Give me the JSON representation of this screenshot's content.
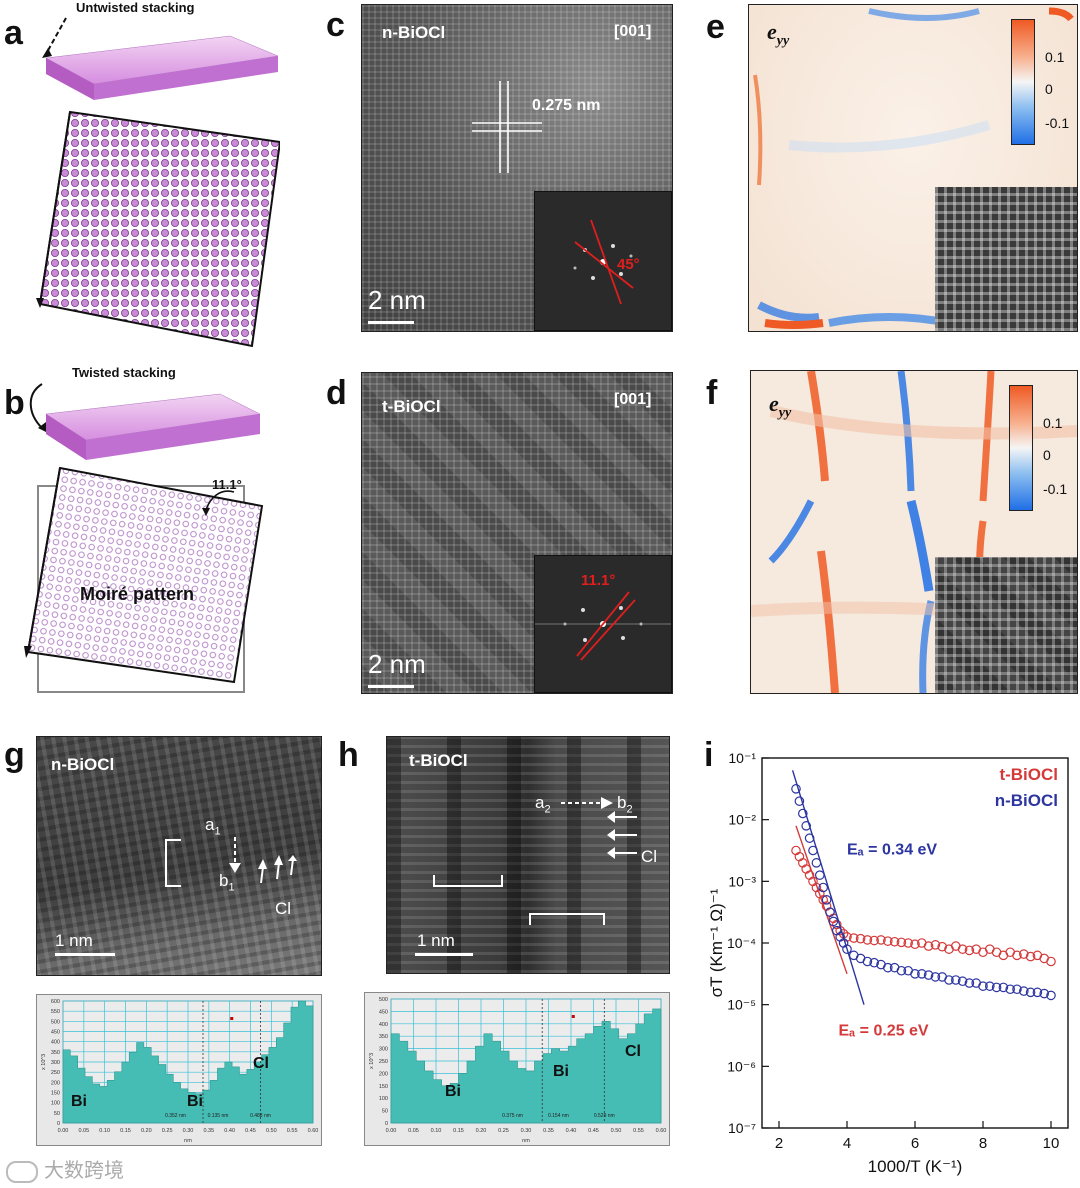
{
  "panels": {
    "a": {
      "letter": "a",
      "caption": "Untwisted stacking"
    },
    "b": {
      "letter": "b",
      "caption": "Twisted stacking",
      "angle": "11.1°",
      "moire": "Moiré pattern"
    },
    "c": {
      "letter": "c",
      "material": "n-BiOCl",
      "zone": "[001]",
      "spacing": "0.275 nm",
      "scale": "2 nm",
      "fft_angle": "45°"
    },
    "d": {
      "letter": "d",
      "material": "t-BiOCl",
      "zone": "[001]",
      "scale": "2 nm",
      "fft_angle": "11.1°"
    },
    "e": {
      "letter": "e",
      "strain_label": "e",
      "strain_sub": "yy",
      "ticks": [
        "0.1",
        "0",
        "-0.1"
      ]
    },
    "f": {
      "letter": "f",
      "strain_label": "e",
      "strain_sub": "yy",
      "ticks": [
        "0.1",
        "0",
        "-0.1"
      ]
    },
    "g": {
      "letter": "g",
      "material": "n-BiOCl",
      "a": "a",
      "a_sub": "1",
      "b": "b",
      "b_sub": "1",
      "cl": "Cl",
      "scale": "1 nm",
      "profile_labels": [
        "Bi",
        "Bi",
        "Cl"
      ],
      "yticks": [
        "600",
        "550",
        "500",
        "450",
        "400",
        "350",
        "300",
        "250",
        "200",
        "150",
        "100",
        "50",
        "0"
      ],
      "xticks": [
        "0.00",
        "0.05",
        "0.10",
        "0.15",
        "0.20",
        "0.25",
        "0.30",
        "0.35",
        "0.40",
        "0.45",
        "0.50",
        "0.55",
        "0.60"
      ],
      "ylabel": "x 10^3",
      "xlabel": "nm",
      "measures": [
        "0.352 nm",
        "0.135 nm",
        "0.488 nm"
      ]
    },
    "h": {
      "letter": "h",
      "material": "t-BiOCl",
      "a": "a",
      "a_sub": "2",
      "b": "b",
      "b_sub": "2",
      "cl": "Cl",
      "scale": "1 nm",
      "profile_labels": [
        "Bi",
        "Bi",
        "Cl"
      ],
      "yticks": [
        "500",
        "450",
        "400",
        "350",
        "300",
        "250",
        "200",
        "150",
        "100",
        "50",
        "0"
      ],
      "xticks": [
        "0.00",
        "0.05",
        "0.10",
        "0.15",
        "0.20",
        "0.25",
        "0.30",
        "0.35",
        "0.40",
        "0.45",
        "0.50",
        "0.55",
        "0.60"
      ],
      "ylabel": "x 10^3",
      "xlabel": "nm",
      "measures": [
        "0.375 nm",
        "0.154 nm",
        "0.529 nm"
      ]
    },
    "i": {
      "letter": "i"
    }
  },
  "watermark": "大数跨境",
  "chart_data": {
    "type": "scatter",
    "xlabel": "1000/T (K⁻¹)",
    "ylabel": "σT (Km⁻¹ Ω)⁻¹",
    "xlim": [
      1.5,
      10.5
    ],
    "ylim_log10": [
      -7,
      -1
    ],
    "xticks": [
      2,
      4,
      6,
      8,
      10
    ],
    "yticks": [
      "10⁻⁷",
      "10⁻⁶",
      "10⁻⁵",
      "10⁻⁴",
      "10⁻³",
      "10⁻²",
      "10⁻¹"
    ],
    "yscale": "log",
    "legend_position": "top-right",
    "colors": {
      "t": "#d43a3a",
      "n": "#2c35a0"
    },
    "series": [
      {
        "name": "t-BiOCl",
        "fit_label": "Eₐ = 0.25 eV",
        "x": [
          2.5,
          2.6,
          2.7,
          2.8,
          2.9,
          3.0,
          3.1,
          3.2,
          3.3,
          3.4,
          3.5,
          3.6,
          3.7,
          3.8,
          3.9,
          4.0,
          4.2,
          4.4,
          4.6,
          4.8,
          5.0,
          5.2,
          5.4,
          5.6,
          5.8,
          6.0,
          6.2,
          6.4,
          6.6,
          6.8,
          7.0,
          7.2,
          7.4,
          7.6,
          7.8,
          8.0,
          8.2,
          8.4,
          8.6,
          8.8,
          9.0,
          9.2,
          9.4,
          9.6,
          9.8,
          10.0
        ],
        "log10y": [
          -2.5,
          -2.6,
          -2.7,
          -2.8,
          -2.9,
          -3.0,
          -3.1,
          -3.2,
          -3.3,
          -3.4,
          -3.5,
          -3.6,
          -3.7,
          -3.8,
          -3.85,
          -3.9,
          -3.92,
          -3.93,
          -3.95,
          -3.96,
          -3.95,
          -3.97,
          -3.98,
          -3.99,
          -4.0,
          -4.02,
          -4.0,
          -4.05,
          -4.03,
          -4.06,
          -4.1,
          -4.05,
          -4.1,
          -4.12,
          -4.1,
          -4.15,
          -4.1,
          -4.15,
          -4.2,
          -4.15,
          -4.2,
          -4.18,
          -4.22,
          -4.2,
          -4.25,
          -4.3
        ],
        "fit": {
          "x": [
            2.5,
            4.0
          ],
          "log10y": [
            -2.1,
            -4.5
          ]
        }
      },
      {
        "name": "n-BiOCl",
        "fit_label": "Eₐ = 0.34 eV",
        "x": [
          2.5,
          2.6,
          2.7,
          2.8,
          2.9,
          3.0,
          3.1,
          3.2,
          3.3,
          3.4,
          3.5,
          3.6,
          3.7,
          3.8,
          3.9,
          4.0,
          4.2,
          4.4,
          4.6,
          4.8,
          5.0,
          5.2,
          5.4,
          5.6,
          5.8,
          6.0,
          6.2,
          6.4,
          6.6,
          6.8,
          7.0,
          7.2,
          7.4,
          7.6,
          7.8,
          8.0,
          8.2,
          8.4,
          8.6,
          8.8,
          9.0,
          9.2,
          9.4,
          9.6,
          9.8,
          10.0
        ],
        "log10y": [
          -1.5,
          -1.7,
          -1.9,
          -2.1,
          -2.3,
          -2.5,
          -2.7,
          -2.9,
          -3.1,
          -3.3,
          -3.5,
          -3.65,
          -3.8,
          -3.9,
          -4.0,
          -4.1,
          -4.2,
          -4.25,
          -4.3,
          -4.32,
          -4.35,
          -4.4,
          -4.4,
          -4.45,
          -4.45,
          -4.5,
          -4.5,
          -4.52,
          -4.55,
          -4.55,
          -4.6,
          -4.6,
          -4.62,
          -4.65,
          -4.65,
          -4.7,
          -4.7,
          -4.72,
          -4.72,
          -4.75,
          -4.75,
          -4.78,
          -4.8,
          -4.8,
          -4.82,
          -4.85
        ],
        "fit": {
          "x": [
            2.4,
            4.5
          ],
          "log10y": [
            -1.2,
            -5.0
          ]
        }
      }
    ]
  }
}
